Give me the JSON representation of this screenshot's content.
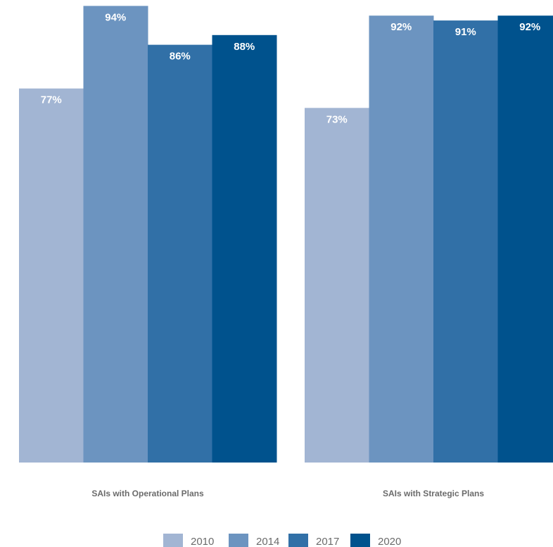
{
  "chart_data": {
    "type": "bar",
    "categories": [
      "SAIs with Operational Plans",
      "SAIs with Strategic Plans"
    ],
    "series": [
      {
        "name": "2010",
        "values": [
          77,
          73
        ],
        "labels": [
          "77%",
          "73%"
        ],
        "color": "#a2b5d3"
      },
      {
        "name": "2014",
        "values": [
          94,
          92
        ],
        "labels": [
          "94%",
          "92%"
        ],
        "color": "#6c94c0"
      },
      {
        "name": "2017",
        "values": [
          86,
          91
        ],
        "labels": [
          "86%",
          "91%"
        ],
        "color": "#3170a7"
      },
      {
        "name": "2020",
        "values": [
          88,
          92
        ],
        "labels": [
          "88%",
          "92%"
        ],
        "color": "#00528d"
      }
    ],
    "ylim": [
      0,
      100
    ],
    "grid": false,
    "legend": "bottom-center",
    "value_labels": "inside-top"
  }
}
